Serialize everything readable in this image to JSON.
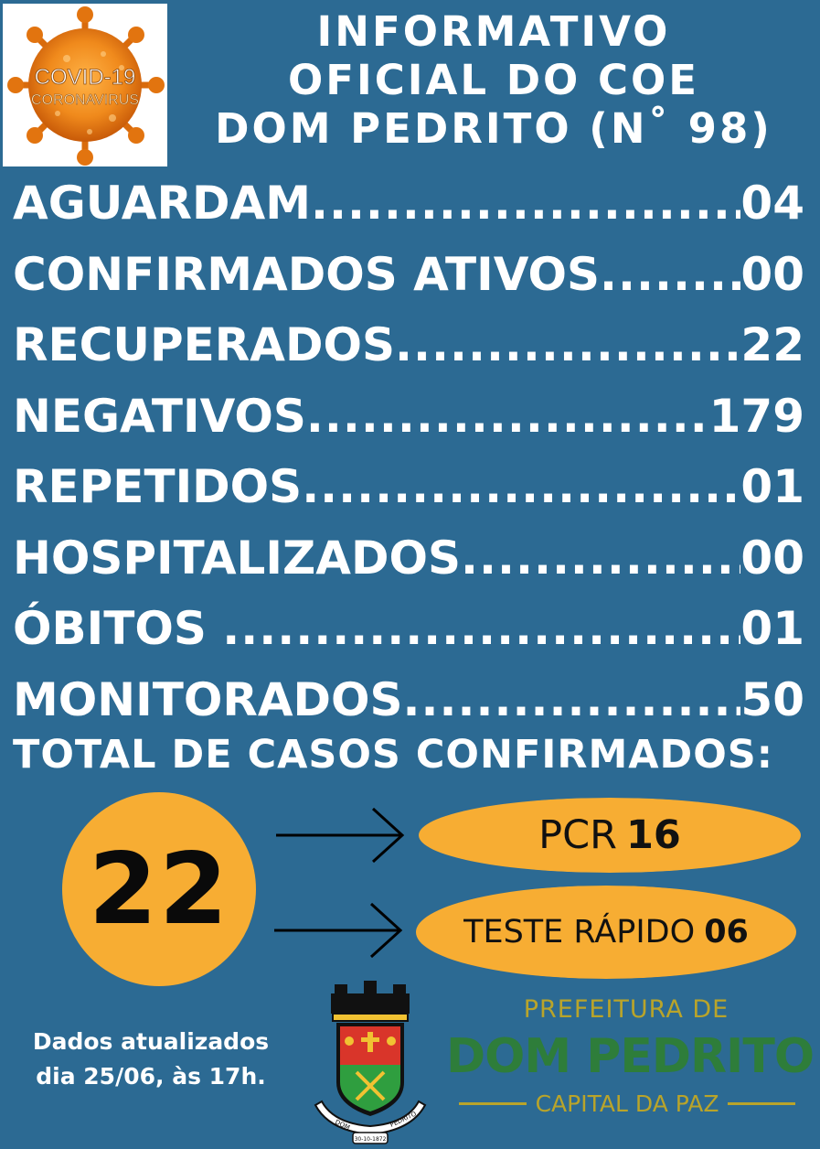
{
  "badge": {
    "line1": "COVID-19",
    "line2": "CORONAVIRUS"
  },
  "title": {
    "line1": "INFORMATIVO",
    "line2": "OFICIAL DO COE",
    "line3": "DOM PEDRITO (N˚ 98)"
  },
  "stats": [
    {
      "label": "AGUARDAM",
      "value": "04"
    },
    {
      "label": "CONFIRMADOS ATIVOS",
      "value": "00"
    },
    {
      "label": "RECUPERADOS",
      "value": "22"
    },
    {
      "label": "NEGATIVOS",
      "value": "179"
    },
    {
      "label": "REPETIDOS",
      "value": "01"
    },
    {
      "label": "HOSPITALIZADOS",
      "value": "00"
    },
    {
      "label": "ÓBITOS ",
      "value": "01"
    },
    {
      "label": "MONITORADOS",
      "value": "50"
    }
  ],
  "total": {
    "label": "TOTAL DE CASOS CONFIRMADOS:",
    "value": "22",
    "pcr": {
      "label": "PCR",
      "value": "16"
    },
    "rapid": {
      "label": "TESTE RÁPIDO",
      "value": "06"
    }
  },
  "updated": {
    "line1": "Dados atualizados",
    "line2": "dia 25/06, às 17h."
  },
  "crest": {
    "left_text": "DOM",
    "right_text": "PEDRITO",
    "date": "30-10-1872"
  },
  "prefeitura": {
    "line1": "PREFEITURA DE",
    "line2": "DOM PEDRITO",
    "line3": "CAPITAL DA PAZ"
  },
  "colors": {
    "background": "#2c6a93",
    "accent": "#f7ad33",
    "green": "#2e7d3a",
    "gold": "#b9a42a"
  }
}
